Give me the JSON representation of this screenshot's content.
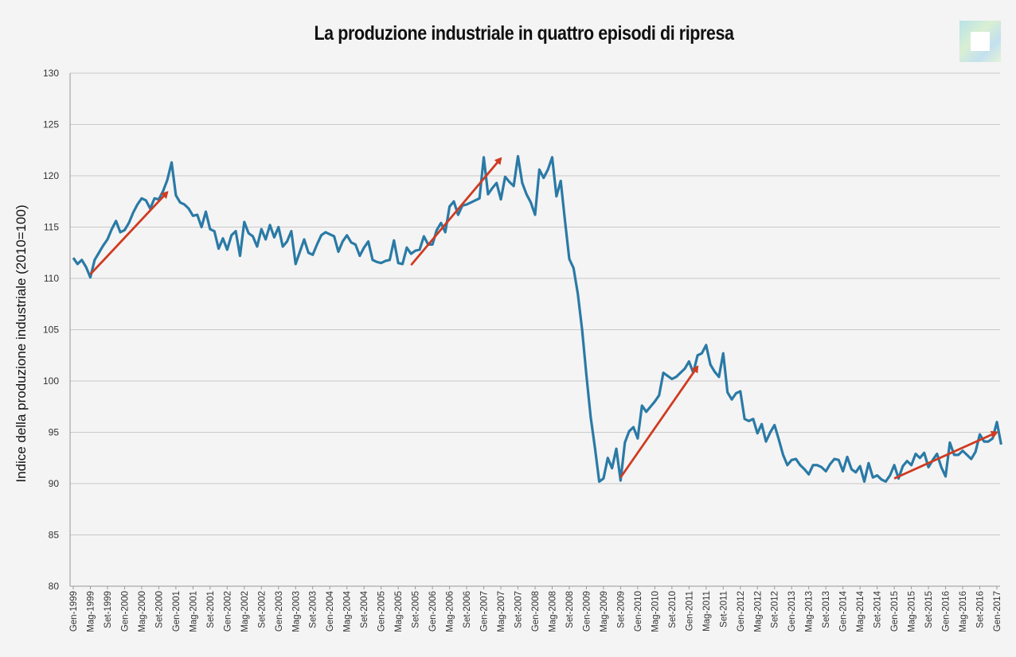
{
  "chart_data": {
    "type": "line",
    "title": "La produzione industriale in quattro episodi di ripresa",
    "xlabel": "",
    "ylabel": "Indice della produzione industriale (2010=100)",
    "ylim": [
      80,
      130
    ],
    "yticks": [
      80,
      85,
      90,
      95,
      100,
      105,
      110,
      115,
      120,
      125,
      130
    ],
    "xlim_months": [
      "Gen-1999",
      "Gen-2017"
    ],
    "grid": "horizontal",
    "legend": "none",
    "line_color": "#2a7aa6",
    "arrow_color": "#d03b22",
    "x_tick_labels": [
      "Gen-1999",
      "Mag-1999",
      "Set-1999",
      "Gen-2000",
      "Mag-2000",
      "Set-2000",
      "Gen-2001",
      "Mag-2001",
      "Set-2001",
      "Gen-2002",
      "Mag-2002",
      "Set-2002",
      "Gen-2003",
      "Mag-2003",
      "Set-2003",
      "Gen-2004",
      "Mag-2004",
      "Set-2004",
      "Gen-2005",
      "Mag-2005",
      "Set-2005",
      "Gen-2006",
      "Mag-2006",
      "Set-2006",
      "Gen-2007",
      "Mag-2007",
      "Set-2007",
      "Gen-2008",
      "Mag-2008",
      "Set-2008",
      "Gen-2009",
      "Mag-2009",
      "Set-2009",
      "Gen-2010",
      "Mag-2010",
      "Set-2010",
      "Gen-2011",
      "Mag-2011",
      "Set-2011",
      "Gen-2012",
      "Mag-2012",
      "Set-2012",
      "Gen-2013",
      "Mag-2013",
      "Set-2013",
      "Gen-2014",
      "Mag-2014",
      "Set-2014",
      "Gen-2015",
      "Mag-2015",
      "Set-2015",
      "Gen-2016",
      "Mag-2016",
      "Set-2016",
      "Gen-2017"
    ],
    "series": [
      {
        "start": "Gen-1999",
        "values": [
          112,
          111.4,
          111.8,
          111.1,
          110.1,
          111.8,
          112.5,
          113.2,
          113.8,
          114.8,
          115.6,
          114.5,
          114.7,
          115.4,
          116.4,
          117.2,
          117.8,
          117.6,
          116.8,
          117.8,
          117.7,
          118.5,
          119.6,
          121.3,
          118.1,
          117.4,
          117.2,
          116.8,
          116.1,
          116.2,
          115,
          116.5,
          114.8,
          114.6,
          112.9,
          113.9,
          112.8,
          114.2,
          114.6,
          112.2,
          115.5,
          114.4,
          114.1,
          113.1,
          114.8,
          113.8,
          115.2,
          114,
          115,
          113.1,
          113.6,
          114.6,
          111.4,
          112.6,
          113.8,
          112.5,
          112.3,
          113.3,
          114.2,
          114.5,
          114.3,
          114.1,
          112.6,
          113.6,
          114.2,
          113.5,
          113.3,
          112.2,
          113,
          113.6,
          111.8,
          111.6,
          111.5,
          111.7,
          111.8,
          113.7,
          111.5,
          111.4,
          113,
          112.4,
          112.7,
          112.8,
          114.1,
          113.3,
          113.3,
          114.7,
          115.4,
          114.5,
          117,
          117.5,
          116.2,
          117.1,
          117.2,
          117.4,
          117.6,
          117.8,
          121.8,
          118.2,
          118.8,
          119.3,
          117.7,
          119.9,
          119.4,
          119,
          121.9,
          119.3,
          118.2,
          117.4,
          116.2,
          120.6,
          119.8,
          120.6,
          121.8,
          118,
          119.5,
          115.6,
          111.9,
          111,
          108.5,
          105,
          100.6,
          96.5,
          93.5,
          90.2,
          90.5,
          92.5,
          91.5,
          93.4,
          90.3,
          94,
          95.1,
          95.5,
          94.4,
          97.6,
          97,
          97.5,
          98,
          98.6,
          100.8,
          100.5,
          100.2,
          100.4,
          100.8,
          101.2,
          101.9,
          100.8,
          102.5,
          102.7,
          103.5,
          101.6,
          100.9,
          100.4,
          102.7,
          98.9,
          98.2,
          98.8,
          99,
          96.3,
          96.1,
          96.3,
          94.9,
          95.8,
          94.1,
          95,
          95.7,
          94.3,
          92.8,
          91.8,
          92.3,
          92.4,
          91.8,
          91.4,
          90.9,
          91.8,
          91.8,
          91.6,
          91.2,
          91.9,
          92.4,
          92.3,
          91.2,
          92.6,
          91.4,
          91.1,
          91.7,
          90.2,
          92,
          90.6,
          90.8,
          90.4,
          90.2,
          90.8,
          91.8,
          90.5,
          91.7,
          92.2,
          91.8,
          92.9,
          92.5,
          93,
          91.6,
          92.3,
          92.9,
          91.6,
          90.7,
          94,
          92.8,
          92.8,
          93.2,
          92.8,
          92.4,
          93.1,
          94.8,
          94.1,
          94.1,
          94.4,
          96,
          93.8
        ]
      }
    ],
    "annotations": [
      {
        "type": "arrow",
        "from": [
          "Mag-1999",
          110.4
        ],
        "to": [
          "Nov-2000",
          118.4
        ]
      },
      {
        "type": "arrow",
        "from": [
          "Ago-2005",
          111.3
        ],
        "to": [
          "Mag-2007",
          121.7
        ]
      },
      {
        "type": "arrow",
        "from": [
          "Set-2009",
          90.6
        ],
        "to": [
          "Mar-2011",
          101.4
        ]
      },
      {
        "type": "arrow",
        "from": [
          "Gen-2015",
          90.5
        ],
        "to": [
          "Gen-2017",
          95
        ]
      }
    ]
  },
  "logo": {
    "icon": "logo-square-icon"
  }
}
